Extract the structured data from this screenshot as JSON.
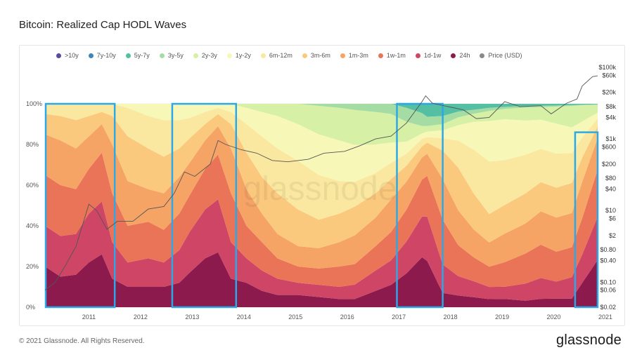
{
  "header": {
    "title": "Bitcoin: Realized Cap HODL Waves"
  },
  "footer": {
    "copyright": "© 2021 Glassnode. All Rights Reserved.",
    "brand": "glassnode"
  },
  "watermark": "glassnode",
  "chart_data": {
    "type": "area",
    "stacked": true,
    "title": "Bitcoin: Realized Cap HODL Waves",
    "x_range": [
      2010.6,
      2021.3
    ],
    "x_ticks": [
      "2011",
      "2012",
      "2013",
      "2014",
      "2015",
      "2016",
      "2017",
      "2018",
      "2019",
      "2020",
      "2021"
    ],
    "y_ticks_left": [
      "0%",
      "20%",
      "40%",
      "60%",
      "80%",
      "100%"
    ],
    "ylim_left": [
      0,
      100
    ],
    "y_ticks_right": [
      "$0.02",
      "$0.06",
      "$0.10",
      "$0.40",
      "$0.80",
      "$2",
      "$6",
      "$10",
      "$40",
      "$80",
      "$200",
      "$600",
      "$1k",
      "$4k",
      "$8k",
      "$20k",
      "$60k",
      "$100k"
    ],
    "price_scale": "log",
    "ylim_right": [
      0.02,
      100000
    ],
    "legend_position": "top",
    "legend": [
      {
        "name": ">10y",
        "color": "#5b4a9e"
      },
      {
        "name": "7y-10y",
        "color": "#3f86b8"
      },
      {
        "name": "5y-7y",
        "color": "#55bfa3"
      },
      {
        "name": "3y-5y",
        "color": "#a5dca3"
      },
      {
        "name": "2y-3y",
        "color": "#d6f0a6"
      },
      {
        "name": "1y-2y",
        "color": "#f7f7b8"
      },
      {
        "name": "6m-12m",
        "color": "#fbe8a0"
      },
      {
        "name": "3m-6m",
        "color": "#fbc97e"
      },
      {
        "name": "1m-3m",
        "color": "#f6a466"
      },
      {
        "name": "1w-1m",
        "color": "#ea7458"
      },
      {
        "name": "1d-1w",
        "color": "#cf4565"
      },
      {
        "name": "24h",
        "color": "#8c1a4c"
      },
      {
        "name": "Price (USD)",
        "color": "#8a8a8a"
      }
    ],
    "x": [
      2010.6,
      2010.9,
      2011.2,
      2011.45,
      2011.7,
      2011.9,
      2012.2,
      2012.6,
      2012.9,
      2013.2,
      2013.4,
      2013.7,
      2013.95,
      2014.2,
      2014.5,
      2014.8,
      2015.1,
      2015.5,
      2015.9,
      2016.3,
      2016.6,
      2017.0,
      2017.3,
      2017.6,
      2017.9,
      2018.0,
      2018.3,
      2018.6,
      2018.9,
      2019.2,
      2019.5,
      2019.9,
      2020.2,
      2020.5,
      2020.8,
      2021.0,
      2021.3
    ],
    "series": [
      {
        "name": ">10y",
        "values": [
          0,
          0,
          0,
          0,
          0,
          0,
          0,
          0,
          0,
          0,
          0,
          0,
          0,
          0,
          0,
          0,
          0,
          0,
          0,
          0,
          0,
          0,
          0,
          0,
          0,
          0,
          0,
          0,
          0,
          0,
          0,
          0,
          0,
          0,
          0,
          0,
          0
        ]
      },
      {
        "name": "7y-10y",
        "values": [
          0,
          0,
          0,
          0,
          0,
          0,
          0,
          0,
          0,
          0,
          0,
          0,
          0,
          0,
          0,
          0,
          0,
          0,
          0,
          0,
          0,
          0,
          0,
          0,
          0,
          0,
          0,
          0,
          0,
          0,
          0,
          0,
          0,
          0,
          0,
          0,
          0
        ]
      },
      {
        "name": "5y-7y",
        "values": [
          0,
          0,
          0,
          0,
          0,
          0,
          0,
          0,
          0,
          0,
          0,
          0,
          0,
          0,
          0,
          0,
          0,
          0,
          0,
          0,
          0,
          0,
          0,
          2,
          5,
          7,
          6,
          4,
          3,
          2,
          1.5,
          1,
          1,
          0.8,
          0.6,
          0.4,
          0.3
        ]
      },
      {
        "name": "3y-5y",
        "values": [
          0,
          0,
          0,
          0,
          0,
          0,
          0,
          0,
          0,
          0,
          0,
          0,
          0,
          0,
          0,
          0,
          0,
          0,
          1,
          2,
          3,
          4,
          5,
          7,
          7,
          5,
          4,
          3,
          2,
          1.5,
          1,
          0.8,
          0.6,
          0.5,
          0.4,
          0.3,
          0.2
        ]
      },
      {
        "name": "2y-3y",
        "values": [
          0,
          0,
          0,
          0,
          0,
          0,
          0,
          0,
          0,
          0,
          0,
          0,
          0,
          0,
          2,
          4,
          6,
          10,
          14,
          16,
          17,
          16,
          14,
          10,
          4,
          3,
          3,
          4,
          4,
          5,
          5,
          6,
          6,
          8,
          10,
          8,
          4
        ]
      },
      {
        "name": "1y-2y",
        "values": [
          0,
          0,
          0,
          0,
          0,
          0,
          2,
          6,
          8,
          8,
          7,
          4,
          2,
          4,
          8,
          12,
          16,
          18,
          20,
          20,
          18,
          14,
          10,
          6,
          3,
          3,
          4,
          8,
          14,
          20,
          20,
          16,
          14,
          14,
          12,
          8,
          3
        ]
      },
      {
        "name": "6m-12m",
        "values": [
          5,
          6,
          8,
          6,
          4,
          6,
          14,
          16,
          18,
          14,
          10,
          6,
          3,
          6,
          14,
          20,
          22,
          24,
          22,
          16,
          12,
          10,
          8,
          6,
          4,
          3,
          6,
          14,
          22,
          26,
          22,
          18,
          16,
          16,
          14,
          10,
          4
        ]
      },
      {
        "name": "3m-6m",
        "values": [
          10,
          12,
          14,
          10,
          6,
          14,
          22,
          20,
          18,
          14,
          12,
          8,
          6,
          12,
          18,
          18,
          20,
          18,
          14,
          14,
          14,
          12,
          10,
          8,
          6,
          6,
          14,
          22,
          18,
          14,
          14,
          14,
          14,
          14,
          14,
          12,
          6
        ]
      },
      {
        "name": "1m-3m",
        "values": [
          20,
          22,
          20,
          16,
          14,
          24,
          22,
          16,
          18,
          18,
          16,
          14,
          14,
          22,
          18,
          14,
          12,
          10,
          10,
          12,
          14,
          14,
          16,
          14,
          12,
          12,
          20,
          18,
          14,
          12,
          14,
          14,
          16,
          16,
          16,
          18,
          16
        ]
      },
      {
        "name": "1w-1m",
        "values": [
          25,
          25,
          22,
          22,
          24,
          24,
          18,
          18,
          16,
          18,
          18,
          20,
          22,
          24,
          16,
          14,
          10,
          8,
          8,
          10,
          10,
          12,
          14,
          16,
          20,
          22,
          22,
          16,
          12,
          10,
          12,
          14,
          16,
          14,
          14,
          18,
          24
        ]
      },
      {
        "name": "1d-1w",
        "values": [
          20,
          20,
          20,
          24,
          26,
          18,
          12,
          14,
          12,
          16,
          20,
          24,
          26,
          18,
          12,
          10,
          8,
          6,
          6,
          6,
          7,
          10,
          12,
          16,
          22,
          24,
          14,
          10,
          8,
          6,
          6,
          8,
          10,
          8,
          10,
          14,
          22
        ]
      },
      {
        "name": "24h",
        "values": [
          20,
          15,
          16,
          22,
          26,
          14,
          10,
          10,
          10,
          12,
          17,
          24,
          27,
          14,
          12,
          8,
          6,
          6,
          5,
          4,
          4,
          8,
          11,
          17,
          27,
          25,
          7,
          6,
          5,
          4,
          4,
          3,
          4,
          4,
          4,
          12,
          24
        ]
      }
    ],
    "price": {
      "name": "Price (USD)",
      "x": [
        2010.6,
        2010.8,
        2011.0,
        2011.2,
        2011.45,
        2011.6,
        2011.8,
        2012.0,
        2012.3,
        2012.6,
        2012.9,
        2013.1,
        2013.3,
        2013.5,
        2013.8,
        2013.95,
        2014.1,
        2014.4,
        2014.7,
        2015.0,
        2015.3,
        2015.7,
        2016.0,
        2016.4,
        2016.7,
        2017.0,
        2017.3,
        2017.6,
        2017.9,
        2017.97,
        2018.1,
        2018.4,
        2018.7,
        2018.95,
        2019.2,
        2019.5,
        2019.8,
        2020.2,
        2020.4,
        2020.7,
        2020.9,
        2021.0,
        2021.2,
        2021.3
      ],
      "values": [
        0.06,
        0.1,
        0.3,
        1.0,
        15,
        10,
        3,
        5,
        5,
        11,
        13,
        30,
        120,
        90,
        200,
        900,
        700,
        500,
        400,
        250,
        230,
        270,
        400,
        450,
        650,
        1000,
        1200,
        2800,
        11000,
        16000,
        10000,
        8000,
        6500,
        3700,
        4000,
        11000,
        8000,
        8500,
        5000,
        10000,
        13000,
        30000,
        55000,
        58000
      ]
    }
  },
  "highlight_boxes": [
    {
      "x_start": 2010.6,
      "x_end": 2011.95,
      "y_top": 100
    },
    {
      "x_start": 2013.05,
      "x_end": 2014.3,
      "y_top": 100
    },
    {
      "x_start": 2017.4,
      "x_end": 2018.3,
      "y_top": 100
    },
    {
      "x_start": 2020.85,
      "x_end": 2021.3,
      "y_top": 86
    }
  ]
}
